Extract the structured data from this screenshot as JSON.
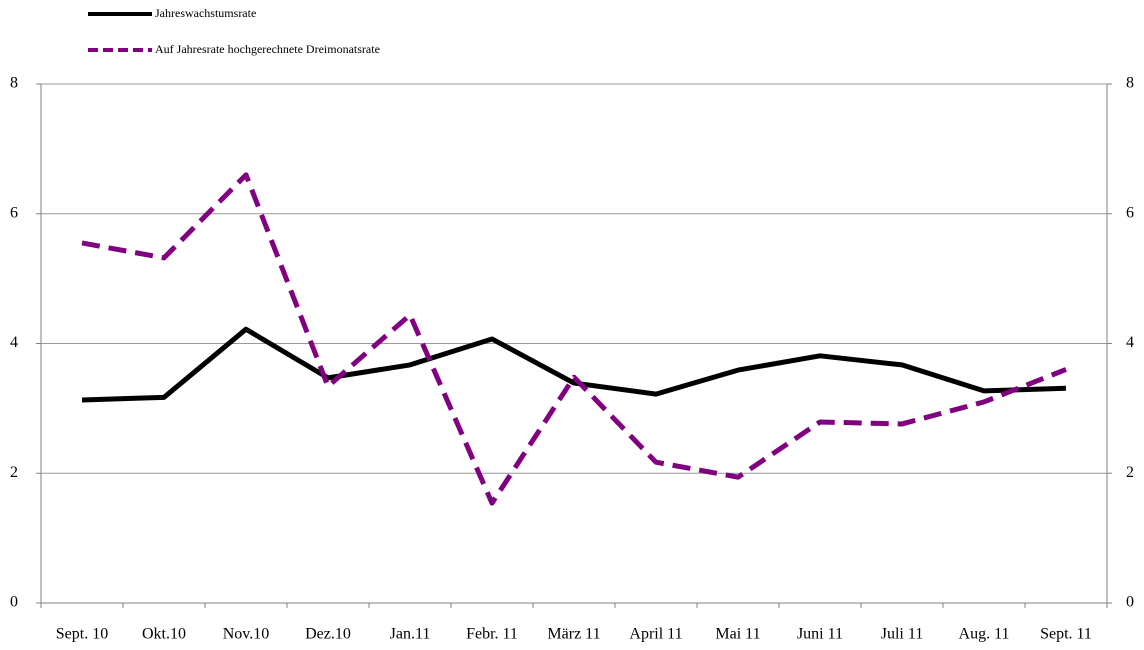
{
  "chart_data": {
    "type": "line",
    "categories": [
      "Sept. 10",
      "Okt.10",
      "Nov.10",
      "Dez.10",
      "Jan.11",
      "Febr. 11",
      "März 11",
      "April 11",
      "Mai 11",
      "Juni 11",
      "Juli 11",
      "Aug. 11",
      "Sept. 11"
    ],
    "series": [
      {
        "name": "Jahreswachstumsrate",
        "color": "#000000",
        "dash": false,
        "values": [
          3.13,
          3.17,
          4.22,
          3.47,
          3.67,
          4.07,
          3.39,
          3.22,
          3.59,
          3.81,
          3.67,
          3.27,
          3.31
        ]
      },
      {
        "name": "Auf Jahresrate hochgerechnete Dreimonatsrate",
        "color": "#800080",
        "dash": true,
        "values": [
          5.55,
          5.32,
          6.6,
          3.34,
          4.44,
          1.54,
          3.48,
          2.17,
          1.94,
          2.79,
          2.76,
          3.1,
          3.6
        ]
      }
    ],
    "ylim": [
      0,
      8
    ],
    "yticks": [
      0,
      2,
      4,
      6,
      8
    ],
    "y2lim": [
      0,
      8
    ],
    "y2ticks": [
      0,
      2,
      4,
      6,
      8
    ],
    "grid": true,
    "legend": "top-left"
  }
}
